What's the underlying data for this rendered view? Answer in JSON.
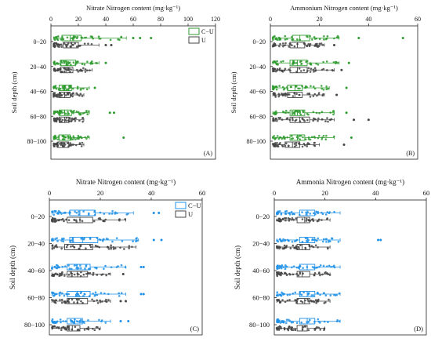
{
  "colors": {
    "cu_top": "#2e9b2e",
    "cu_bottom": "#1e90e8",
    "u": "#444444"
  },
  "chart_data": [
    {
      "type": "box",
      "panel": "(A)",
      "xlabel": "Nitrate Nitrogen content (mg·kg⁻¹)",
      "ylabel": "Soil depth (cm)",
      "xlim": [
        0,
        120
      ],
      "xticks": [
        0,
        20,
        40,
        60,
        80,
        100,
        120
      ],
      "x_axis_position": "top",
      "legend": [
        "C−U",
        "U"
      ],
      "legend_position": "top-right",
      "categories": [
        "0−20",
        "20−40",
        "40−60",
        "60−80",
        "80−100"
      ],
      "series": [
        {
          "name": "C−U",
          "boxes": [
            {
              "whisker_low": 2,
              "q1": 8,
              "median": 14,
              "q3": 22,
              "whisker_high": 55,
              "outliers": [
                60,
                65,
                73
              ]
            },
            {
              "whisker_low": 2,
              "q1": 7,
              "median": 11,
              "q3": 18,
              "whisker_high": 35,
              "outliers": [
                40
              ]
            },
            {
              "whisker_low": 2,
              "q1": 6,
              "median": 10,
              "q3": 15,
              "whisker_high": 28,
              "outliers": [
                32
              ]
            },
            {
              "whisker_low": 2,
              "q1": 6,
              "median": 10,
              "q3": 15,
              "whisker_high": 28,
              "outliers": [
                43,
                46
              ]
            },
            {
              "whisker_low": 2,
              "q1": 6,
              "median": 9,
              "q3": 14,
              "whisker_high": 28,
              "outliers": [
                53
              ]
            }
          ]
        },
        {
          "name": "U",
          "boxes": [
            {
              "whisker_low": 2,
              "q1": 9,
              "median": 15,
              "q3": 20,
              "whisker_high": 35,
              "outliers": [
                40,
                44
              ]
            },
            {
              "whisker_low": 2,
              "q1": 7,
              "median": 11,
              "q3": 16,
              "whisker_high": 30,
              "outliers": []
            },
            {
              "whisker_low": 2,
              "q1": 6,
              "median": 10,
              "q3": 14,
              "whisker_high": 24,
              "outliers": []
            },
            {
              "whisker_low": 2,
              "q1": 6,
              "median": 10,
              "q3": 13,
              "whisker_high": 24,
              "outliers": []
            },
            {
              "whisker_low": 2,
              "q1": 5,
              "median": 9,
              "q3": 13,
              "whisker_high": 24,
              "outliers": []
            }
          ]
        }
      ]
    },
    {
      "type": "box",
      "panel": "(B)",
      "xlabel": "Ammonium Nitrogen content (mg·kg⁻¹)",
      "ylabel": "Soil depth (cm)",
      "xlim": [
        0,
        60
      ],
      "xticks": [
        0,
        20,
        40,
        60
      ],
      "x_axis_position": "top",
      "legend": [],
      "categories": [
        "0−20",
        "20−40",
        "40−60",
        "60−80",
        "80−100"
      ],
      "series": [
        {
          "name": "C−U",
          "boxes": [
            {
              "whisker_low": 1,
              "q1": 9,
              "median": 12,
              "q3": 16,
              "whisker_high": 28,
              "outliers": [
                36,
                54
              ]
            },
            {
              "whisker_low": 1,
              "q1": 8,
              "median": 11,
              "q3": 15,
              "whisker_high": 28,
              "outliers": [
                32
              ]
            },
            {
              "whisker_low": 1,
              "q1": 7,
              "median": 10,
              "q3": 13,
              "whisker_high": 24,
              "outliers": [
                31
              ]
            },
            {
              "whisker_low": 1,
              "q1": 8,
              "median": 11,
              "q3": 14,
              "whisker_high": 26,
              "outliers": [
                31
              ]
            },
            {
              "whisker_low": 1,
              "q1": 8,
              "median": 11,
              "q3": 14,
              "whisker_high": 26,
              "outliers": [
                33
              ]
            }
          ]
        },
        {
          "name": "U",
          "boxes": [
            {
              "whisker_low": 1,
              "q1": 8,
              "median": 11,
              "q3": 14,
              "whisker_high": 22,
              "outliers": [
                26
              ]
            },
            {
              "whisker_low": 1,
              "q1": 8,
              "median": 11,
              "q3": 15,
              "whisker_high": 26,
              "outliers": [
                29
              ]
            },
            {
              "whisker_low": 1,
              "q1": 7,
              "median": 10,
              "q3": 13,
              "whisker_high": 22,
              "outliers": [
                27
              ]
            },
            {
              "whisker_low": 1,
              "q1": 8,
              "median": 12,
              "q3": 16,
              "whisker_high": 26,
              "outliers": [
                34,
                40
              ]
            },
            {
              "whisker_low": 1,
              "q1": 6,
              "median": 9,
              "q3": 12,
              "whisker_high": 20,
              "outliers": [
                30
              ]
            }
          ]
        }
      ]
    },
    {
      "type": "box",
      "panel": "(C)",
      "xlabel": "Nitrate Nitrogen content (mg·kg⁻¹)",
      "ylabel": "Soil depth (cm)",
      "xlim": [
        0,
        60
      ],
      "xticks": [
        0,
        20,
        40,
        60
      ],
      "x_axis_position": "top",
      "legend": [
        "C−U",
        "U"
      ],
      "legend_position": "top-right",
      "categories": [
        "0−20",
        "20−40",
        "40−60",
        "60−80",
        "80−100"
      ],
      "series": [
        {
          "name": "C−U",
          "boxes": [
            {
              "whisker_low": 1,
              "q1": 8,
              "median": 12,
              "q3": 18,
              "whisker_high": 33,
              "outliers": [
                41,
                43
              ]
            },
            {
              "whisker_low": 1,
              "q1": 8,
              "median": 13,
              "q3": 19,
              "whisker_high": 35,
              "outliers": [
                41,
                44
              ]
            },
            {
              "whisker_low": 1,
              "q1": 7,
              "median": 11,
              "q3": 16,
              "whisker_high": 30,
              "outliers": [
                36,
                37
              ]
            },
            {
              "whisker_low": 1,
              "q1": 7,
              "median": 11,
              "q3": 16,
              "whisker_high": 30,
              "outliers": [
                36,
                37
              ]
            },
            {
              "whisker_low": 1,
              "q1": 7,
              "median": 10,
              "q3": 13,
              "whisker_high": 24,
              "outliers": [
                28,
                31
              ]
            }
          ]
        },
        {
          "name": "U",
          "boxes": [
            {
              "whisker_low": 1,
              "q1": 7,
              "median": 12,
              "q3": 17,
              "whisker_high": 30,
              "outliers": []
            },
            {
              "whisker_low": 1,
              "q1": 6,
              "median": 12,
              "q3": 17,
              "whisker_high": 34,
              "outliers": []
            },
            {
              "whisker_low": 1,
              "q1": 7,
              "median": 11,
              "q3": 15,
              "whisker_high": 24,
              "outliers": [
                29
              ]
            },
            {
              "whisker_low": 1,
              "q1": 7,
              "median": 11,
              "q3": 15,
              "whisker_high": 24,
              "outliers": [
                28,
                30
              ]
            },
            {
              "whisker_low": 1,
              "q1": 7,
              "median": 9,
              "q3": 12,
              "whisker_high": 20,
              "outliers": []
            }
          ]
        }
      ]
    },
    {
      "type": "box",
      "panel": "(D)",
      "xlabel": "Ammonia Nitrogen content (mg·kg⁻¹)",
      "ylabel": "Soil depth (cm)",
      "xlim": [
        0,
        60
      ],
      "xticks": [
        0,
        20,
        40,
        60
      ],
      "x_axis_position": "top",
      "legend": [],
      "categories": [
        "0−20",
        "20−40",
        "40−60",
        "60−80",
        "80−100"
      ],
      "series": [
        {
          "name": "C−U",
          "boxes": [
            {
              "whisker_low": 1,
              "q1": 10,
              "median": 13,
              "q3": 16,
              "whisker_high": 26,
              "outliers": []
            },
            {
              "whisker_low": 1,
              "q1": 10,
              "median": 13,
              "q3": 16,
              "whisker_high": 26,
              "outliers": [
                41,
                42
              ]
            },
            {
              "whisker_low": 1,
              "q1": 10,
              "median": 13,
              "q3": 16,
              "whisker_high": 26,
              "outliers": []
            },
            {
              "whisker_low": 1,
              "q1": 10,
              "median": 13,
              "q3": 16,
              "whisker_high": 26,
              "outliers": []
            },
            {
              "whisker_low": 1,
              "q1": 10,
              "median": 13,
              "q3": 16,
              "whisker_high": 26,
              "outliers": []
            }
          ]
        },
        {
          "name": "U",
          "boxes": [
            {
              "whisker_low": 1,
              "q1": 9,
              "median": 12,
              "q3": 14,
              "whisker_high": 22,
              "outliers": []
            },
            {
              "whisker_low": 1,
              "q1": 9,
              "median": 11,
              "q3": 14,
              "whisker_high": 22,
              "outliers": []
            },
            {
              "whisker_low": 1,
              "q1": 9,
              "median": 11,
              "q3": 14,
              "whisker_high": 22,
              "outliers": []
            },
            {
              "whisker_low": 1,
              "q1": 9,
              "median": 12,
              "q3": 14,
              "whisker_high": 22,
              "outliers": []
            },
            {
              "whisker_low": 1,
              "q1": 9,
              "median": 11,
              "q3": 13,
              "whisker_high": 20,
              "outliers": [
                1
              ]
            }
          ]
        }
      ]
    }
  ]
}
